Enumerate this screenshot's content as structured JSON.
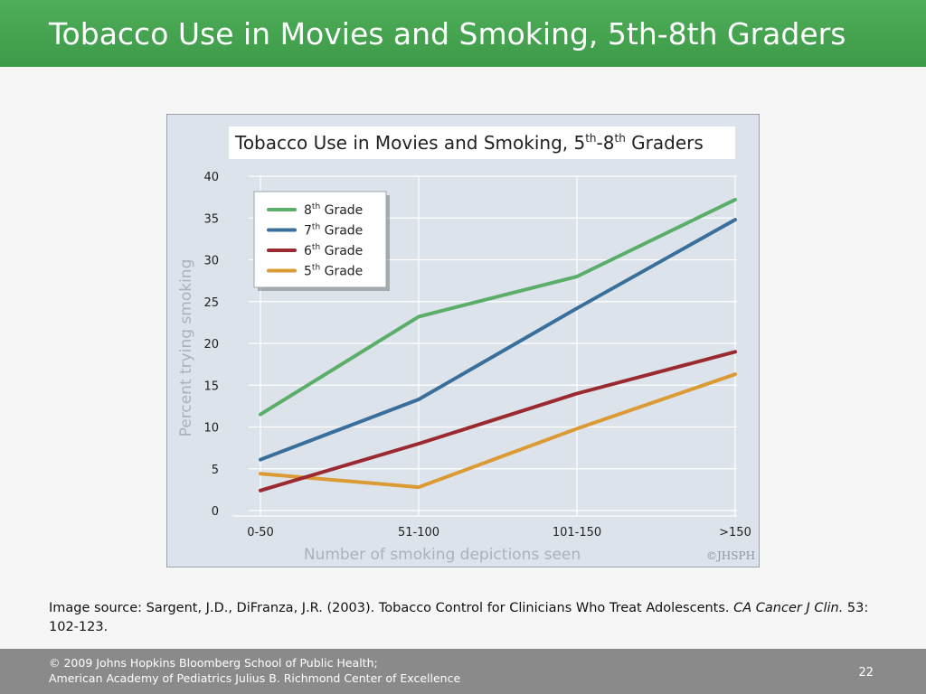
{
  "slide": {
    "title": "Tobacco Use in Movies and Smoking, 5th-8th Graders",
    "caption_prefix": "Image source: Sargent, J.D., DiFranza, J.R. (2003). Tobacco Control for Clinicians Who Treat Adolescents. ",
    "caption_journal": "CA Cancer J Clin.",
    "caption_suffix": " 53: 102-123.",
    "footer_line1": "© 2009 Johns Hopkins Bloomberg School of Public Health;",
    "footer_line2": "American Academy of Pediatrics Julius B. Richmond Center of Excellence",
    "page_number": "22",
    "watermark": "©JHSPH"
  },
  "chart_data": {
    "type": "line",
    "title_base": "Tobacco Use in Movies and Smoking, 5",
    "title_sup1": "th",
    "title_mid": "-8",
    "title_sup2": "th",
    "title_end": " Graders",
    "xlabel": "Number of smoking depictions seen",
    "ylabel": "Percent trying smoking",
    "categories": [
      "0-50",
      "51-100",
      "101-150",
      ">150"
    ],
    "ylim": [
      0,
      40
    ],
    "yticks": [
      0,
      5,
      10,
      15,
      20,
      25,
      30,
      35,
      40
    ],
    "grid": true,
    "legend_position": "top-left",
    "series": [
      {
        "name": "8th Grade",
        "ordinal": "8",
        "sup": "th",
        "suffix": " Grade",
        "color": "#5aae6a",
        "values": [
          11.5,
          23.2,
          28,
          37.2
        ]
      },
      {
        "name": "7th Grade",
        "ordinal": "7",
        "sup": "th",
        "suffix": " Grade",
        "color": "#3a6f9c",
        "values": [
          6.1,
          13.3,
          24.2,
          34.8
        ]
      },
      {
        "name": "6th Grade",
        "ordinal": "6",
        "sup": "th",
        "suffix": " Grade",
        "color": "#9b2a30",
        "values": [
          2.4,
          8,
          14,
          19
        ]
      },
      {
        "name": "5th Grade",
        "ordinal": "5",
        "sup": "th",
        "suffix": " Grade",
        "color": "#dc9a35",
        "values": [
          4.4,
          2.8,
          9.8,
          16.3
        ]
      }
    ]
  }
}
